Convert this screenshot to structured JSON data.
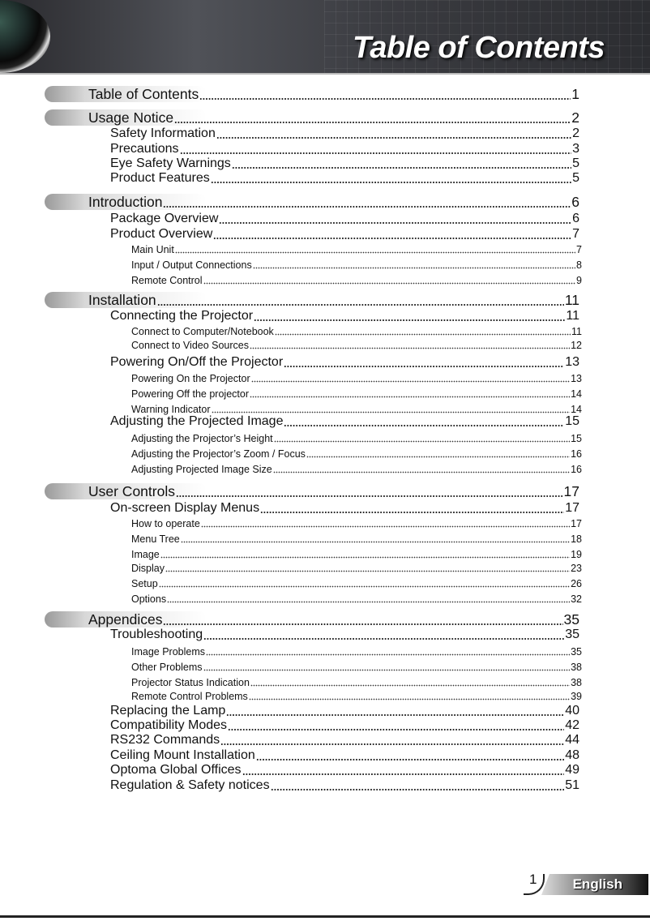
{
  "header": {
    "title": "Table of Contents"
  },
  "toc": [
    {
      "level": 1,
      "title": "Table of Contents",
      "page": "1"
    },
    {
      "level": 1,
      "title": "Usage Notice",
      "page": "2"
    },
    {
      "level": 2,
      "title": "Safety Information",
      "page": "2"
    },
    {
      "level": 2,
      "title": "Precautions",
      "page": "3"
    },
    {
      "level": 2,
      "title": "Eye Safety Warnings",
      "page": "5"
    },
    {
      "level": 2,
      "title": "Product Features",
      "page": "5"
    },
    {
      "level": 1,
      "title": "Introduction",
      "page": "6"
    },
    {
      "level": 2,
      "title": "Package Overview",
      "page": "6"
    },
    {
      "level": 2,
      "title": "Product Overview",
      "page": "7"
    },
    {
      "level": 3,
      "title": "Main Unit",
      "page": "7"
    },
    {
      "level": 3,
      "title": "Input / Output Connections",
      "page": "8"
    },
    {
      "level": 3,
      "title": "Remote Control",
      "page": "9"
    },
    {
      "level": 1,
      "title": "Installation",
      "page": "11"
    },
    {
      "level": 2,
      "title": "Connecting the Projector",
      "page": "11"
    },
    {
      "level": 3,
      "title": "Connect to Computer/Notebook",
      "page": "11"
    },
    {
      "level": 3,
      "title": "Connect to Video Sources",
      "page": "12"
    },
    {
      "level": 2,
      "title": "Powering On/Off the Projector",
      "page": "13"
    },
    {
      "level": 3,
      "title": "Powering On the Projector",
      "page": "13"
    },
    {
      "level": 3,
      "title": "Powering Off the projector",
      "page": "14"
    },
    {
      "level": 3,
      "title": "Warning Indicator",
      "page": "14"
    },
    {
      "level": 2,
      "title": "Adjusting the Projected Image",
      "page": "15"
    },
    {
      "level": 3,
      "title": "Adjusting the Projector’s Height",
      "page": "15"
    },
    {
      "level": 3,
      "title": "Adjusting the Projector’s Zoom / Focus",
      "page": "16"
    },
    {
      "level": 3,
      "title": "Adjusting Projected Image Size",
      "page": "16"
    },
    {
      "level": 1,
      "title": "User Controls",
      "page": "17"
    },
    {
      "level": 2,
      "title": "On-screen Display Menus",
      "page": "17"
    },
    {
      "level": 3,
      "title": "How to operate",
      "page": "17"
    },
    {
      "level": 3,
      "title": "Menu Tree",
      "page": "18"
    },
    {
      "level": 3,
      "title": "Image",
      "page": "19"
    },
    {
      "level": 3,
      "title": "Display",
      "page": "23"
    },
    {
      "level": 3,
      "title": "Setup",
      "page": "26"
    },
    {
      "level": 3,
      "title": "Options",
      "page": "32"
    },
    {
      "level": 1,
      "title": "Appendices",
      "page": "35"
    },
    {
      "level": 2,
      "title": "Troubleshooting",
      "page": "35"
    },
    {
      "level": 3,
      "title": "Image Problems",
      "page": "35"
    },
    {
      "level": 3,
      "title": "Other Problems",
      "page": "38"
    },
    {
      "level": 3,
      "title": "Projector Status Indication",
      "page": "38"
    },
    {
      "level": 3,
      "title": "Remote Control Problems",
      "page": "39"
    },
    {
      "level": 2,
      "title": "Replacing the Lamp",
      "page": "40"
    },
    {
      "level": 2,
      "title": "Compatibility Modes",
      "page": "42"
    },
    {
      "level": 2,
      "title": "RS232 Commands",
      "page": "44"
    },
    {
      "level": 2,
      "title": "Ceiling Mount Installation",
      "page": "48"
    },
    {
      "level": 2,
      "title": "Optoma Global Offices",
      "page": "49"
    },
    {
      "level": 2,
      "title": "Regulation & Safety notices",
      "page": "51"
    }
  ],
  "footer": {
    "page_number": "1",
    "language": "English"
  }
}
